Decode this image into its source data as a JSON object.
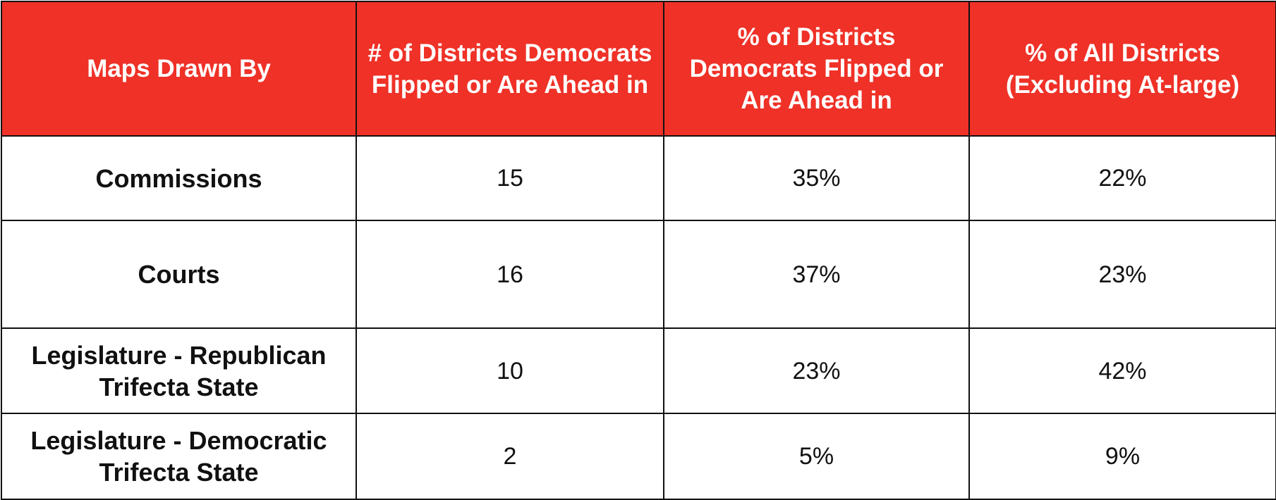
{
  "table": {
    "headers": [
      "Maps Drawn By",
      "# of Districts Democrats Flipped or Are Ahead in",
      "% of Districts Democrats Flipped or Are Ahead in",
      "% of All Districts (Excluding At-large)"
    ],
    "rows": [
      {
        "label": "Commissions",
        "count": "15",
        "pct_flipped": "35%",
        "pct_all": "22%"
      },
      {
        "label": "Courts",
        "count": "16",
        "pct_flipped": "37%",
        "pct_all": "23%"
      },
      {
        "label": "Legislature - Republican Trifecta State",
        "count": "10",
        "pct_flipped": "23%",
        "pct_all": "42%"
      },
      {
        "label": "Legislature - Democratic Trifecta State",
        "count": "2",
        "pct_flipped": "5%",
        "pct_all": "9%"
      }
    ]
  },
  "colors": {
    "header_background": "#ef3127",
    "header_text": "#ffffff",
    "body_text": "#111111",
    "border": "#111111"
  }
}
